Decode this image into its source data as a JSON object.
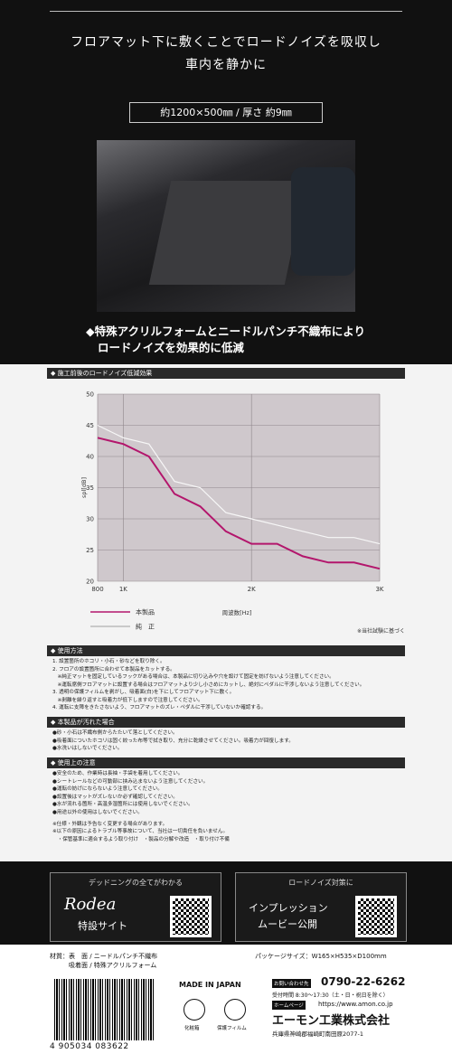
{
  "header": {
    "lines": [
      "フロアマット下に敷くことでロードノイズを吸収し",
      "車内を静かに"
    ],
    "size": "約1200×500㎜ / 厚さ 約9㎜"
  },
  "feature": {
    "lines": [
      "◆特殊アクリルフォームとニードルパンチ不織布により",
      "ロードノイズを効果的に低減"
    ]
  },
  "chart_data": {
    "type": "line",
    "title": "◆ 施工前後のロードノイズ低減効果",
    "x": [
      800,
      1000,
      1200,
      1400,
      1600,
      1800,
      2000,
      2200,
      2400,
      2600,
      2800,
      3000
    ],
    "series": [
      {
        "name": "本製品",
        "color": "#b3166c",
        "values": [
          43,
          42,
          40,
          34,
          32,
          28,
          26,
          26,
          24,
          23,
          23,
          22
        ]
      },
      {
        "name": "純　正",
        "color": "#f7f7f7",
        "values": [
          45,
          43,
          42,
          36,
          35,
          31,
          30,
          29,
          28,
          27,
          27,
          26
        ]
      }
    ],
    "xlim": [
      800,
      3000
    ],
    "xticks": [
      800,
      {
        "value": 1000,
        "label": "1K"
      },
      {
        "value": 2000,
        "label": "2K"
      },
      {
        "value": 3000,
        "label": "3K"
      }
    ],
    "ylim": [
      20,
      50
    ],
    "yticks": [
      20,
      25,
      30,
      35,
      40,
      45,
      50
    ],
    "x_label": "周波数[Hz]",
    "y_label": "spl[dB]",
    "note": "※当社試験に基づく",
    "grid": true
  },
  "sections": [
    {
      "title": "◆ 使用方法",
      "items": [
        "1. 設置箇所のホコリ・小石・砂などを取り除く。",
        "2. フロアの設置箇所に合わせて本製品をカットする。",
        "　※純正マットを固定しているフックがある場合は、本製品に切り込みや穴を設けて固定を妨げないよう注意してください。",
        "　※運転席側フロアマットに設置する場合はフロアマットより少し小さめにカットし、絶対にペダルに干渉しないよう注意してください。",
        "3. 透明の保護フィルムを剥がし、吸着面(白)を下にしてフロアマット下に敷く。",
        "　※剥離を繰り返すと吸着力が低下しますので注意してください。",
        "4. 運転に支障をきたさないよう、フロアマットのズレ・ペダルに干渉していないか確認する。"
      ]
    },
    {
      "title": "◆ 本製品が汚れた場合",
      "items": [
        "●砂・小石は不織布側からたたいて落としてください。",
        "●吸着面についたホコリは固く絞った布等で拭き取り、充分に乾燥させてください。吸着力が回復します。",
        "●水洗いはしないでください。"
      ]
    },
    {
      "title": "◆ 使用上の注意",
      "items": [
        "●安全のため、作業時は長袖・手袋を着用してください。",
        "●シートレールなどの可動部に挟み込まないよう注意してください。",
        "●運転の妨げにならないよう注意してください。",
        "●設置後はマットがズレないか必ず確認してください。",
        "●水が流れる箇所・高温多湿箇所には使用しないでください。",
        "●用途以外の使用はしないでください。"
      ]
    }
  ],
  "notes": [
    "※仕様・外観は予告なく変更する場合があります。",
    "※以下の原因によるトラブル等事故について、当社は一切責任を負いません。",
    "　・保管基準に適合するよう取り付け　・製品の分解や改造　・取り付け不備"
  ],
  "links": [
    {
      "caption": "デッドニングの全てがわかる",
      "lines": [
        "Rodea",
        "特設サイト"
      ]
    },
    {
      "caption": "ロードノイズ対策に",
      "lines": [
        "インプレッション",
        "ムービー公開"
      ]
    }
  ],
  "footer": {
    "material": [
      "材質：表　面 / ニードルパンチ不織布",
      "　　　吸着面 / 特殊アクリルフォーム"
    ],
    "package": "パッケージサイズ：W165×H535×D100mm",
    "made": "MADE IN JAPAN",
    "contact_label": "お問い合わせ先",
    "phone": "0790-22-6262",
    "hours": "受付時間 8:30〜17:30（土・日・祝日を除く）",
    "web_label": "ホームページ",
    "url": "https://www.amon.co.jp",
    "company": "エーモン工業株式会社",
    "address": "兵庫県神崎郡福崎町南田原2077-1",
    "barcode": "4 905034 083622",
    "icons": [
      "化粧箱",
      "保護フィルム"
    ]
  }
}
